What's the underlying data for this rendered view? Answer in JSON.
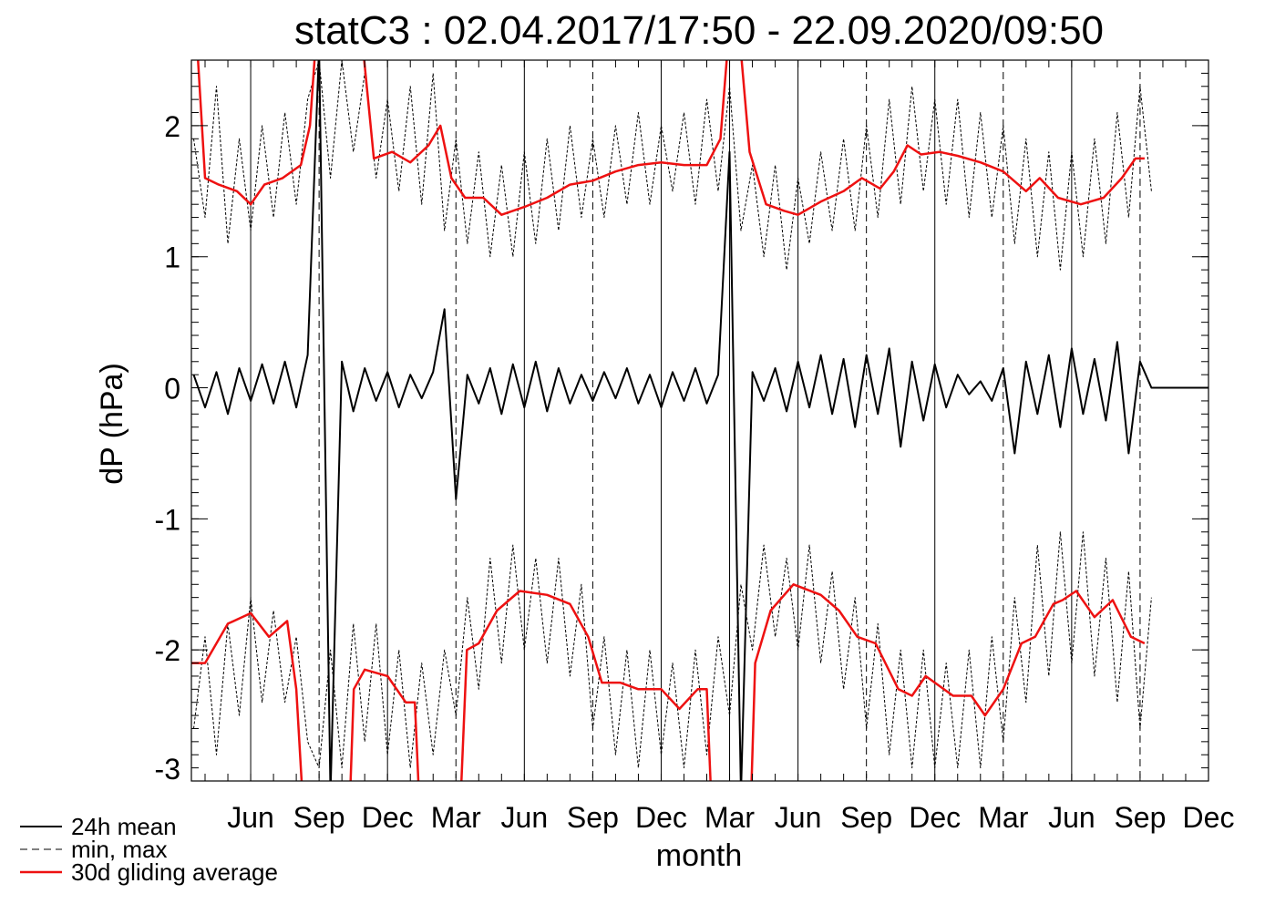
{
  "chart_data": {
    "type": "line",
    "title": "statC3 : 02.04.2017/17:50 - 22.09.2020/09:50",
    "xlabel": "month",
    "ylabel": "dP (hPa)",
    "xlim": [
      2.4,
      47
    ],
    "ylim": [
      -3,
      2.5
    ],
    "xticks": [
      {
        "value": 5,
        "label": "Jun"
      },
      {
        "value": 8,
        "label": "Sep"
      },
      {
        "value": 11,
        "label": "Dec"
      },
      {
        "value": 14,
        "label": "Mar"
      },
      {
        "value": 17,
        "label": "Jun"
      },
      {
        "value": 20,
        "label": "Sep"
      },
      {
        "value": 23,
        "label": "Dec"
      },
      {
        "value": 26,
        "label": "Mar"
      },
      {
        "value": 29,
        "label": "Jun"
      },
      {
        "value": 32,
        "label": "Sep"
      },
      {
        "value": 35,
        "label": "Dec"
      },
      {
        "value": 38,
        "label": "Mar"
      },
      {
        "value": 41,
        "label": "Jun"
      },
      {
        "value": 44,
        "label": "Sep"
      },
      {
        "value": 47,
        "label": "Dec"
      }
    ],
    "grid_dash": [
      false,
      true,
      false,
      true,
      false,
      true,
      false,
      false,
      false,
      true,
      false,
      true,
      false,
      true,
      false
    ],
    "yticks": [
      2,
      1,
      0,
      -1,
      -2,
      -3
    ],
    "x_minor_step": 1,
    "y_minor_step": 0.1,
    "x": [
      2.5,
      3,
      3.5,
      4,
      4.5,
      5,
      5.5,
      6,
      6.5,
      7,
      7.5,
      8,
      8.5,
      9,
      9.5,
      10,
      10.5,
      11,
      11.5,
      12,
      12.5,
      13,
      13.5,
      14,
      14.5,
      15,
      15.5,
      16,
      16.5,
      17,
      17.5,
      18,
      18.5,
      19,
      19.5,
      20,
      20.5,
      21,
      21.5,
      22,
      22.5,
      23,
      23.5,
      24,
      24.5,
      25,
      25.5,
      26,
      26.5,
      27,
      27.5,
      28,
      28.5,
      29,
      29.5,
      30,
      30.5,
      31,
      31.5,
      32,
      32.5,
      33,
      33.5,
      34,
      34.5,
      35,
      35.5,
      36,
      36.5,
      37,
      37.5,
      38,
      38.5,
      39,
      39.5,
      40,
      40.5,
      41,
      41.5,
      42,
      42.5,
      43,
      43.5,
      44,
      44.5,
      45,
      47
    ],
    "series": [
      {
        "name": "24h mean",
        "color": "#000000",
        "dash": false,
        "width": 2,
        "lines": [
          {
            "values": [
              0.1,
              -0.15,
              0.12,
              -0.2,
              0.15,
              -0.1,
              0.18,
              -0.12,
              0.2,
              -0.15,
              0.25,
              2.6,
              -3.1,
              0.2,
              -0.18,
              0.15,
              -0.1,
              0.12,
              -0.15,
              0.1,
              -0.08,
              0.12,
              0.6,
              -0.85,
              0.1,
              -0.12,
              0.15,
              -0.2,
              0.18,
              -0.15,
              0.2,
              -0.18,
              0.15,
              -0.12,
              0.1,
              -0.1,
              0.12,
              -0.08,
              0.15,
              -0.12,
              0.1,
              -0.15,
              0.12,
              -0.1,
              0.15,
              -0.12,
              0.1,
              1.8,
              -3.1,
              0.12,
              -0.1,
              0.15,
              -0.18,
              0.2,
              -0.15,
              0.25,
              -0.2,
              0.22,
              -0.3,
              0.25,
              -0.2,
              0.3,
              -0.45,
              0.2,
              -0.25,
              0.18,
              -0.15,
              0.1,
              -0.05,
              0.05,
              -0.1,
              0.15,
              -0.5,
              0.2,
              -0.2,
              0.25,
              -0.3,
              0.3,
              -0.2,
              0.22,
              -0.25,
              0.35,
              -0.5,
              0.2,
              0,
              0,
              0
            ]
          }
        ]
      },
      {
        "name": "min, max",
        "color": "#000000",
        "dash": true,
        "width": 1,
        "lines": [
          {
            "values": [
              1.9,
              1.3,
              2.3,
              1.1,
              1.9,
              1.2,
              2.0,
              1.3,
              2.1,
              1.4,
              2.2,
              2.5,
              1.6,
              2.5,
              1.8,
              2.4,
              1.6,
              2.2,
              1.5,
              2.3,
              1.4,
              2.4,
              1.2,
              1.9,
              1.1,
              1.8,
              1.0,
              1.7,
              1.0,
              1.8,
              1.1,
              1.9,
              1.2,
              2.0,
              1.3,
              1.9,
              1.3,
              2.0,
              1.4,
              2.1,
              1.4,
              2.0,
              1.5,
              2.1,
              1.4,
              2.2,
              1.5,
              2.3,
              1.2,
              1.7,
              1.0,
              1.7,
              0.9,
              1.6,
              1.1,
              1.8,
              1.2,
              1.9,
              1.2,
              2.0,
              1.3,
              2.2,
              1.4,
              2.3,
              1.5,
              2.2,
              1.4,
              2.2,
              1.3,
              2.1,
              1.3,
              2.0,
              1.1,
              1.9,
              1.0,
              1.8,
              0.9,
              1.8,
              1.0,
              1.9,
              1.1,
              2.1,
              1.3,
              2.3,
              1.5,
              null,
              null
            ]
          },
          {
            "values": [
              -2.6,
              -1.9,
              -2.8,
              -1.8,
              -2.5,
              -1.6,
              -2.4,
              -1.7,
              -2.4,
              -1.9,
              -2.7,
              -2.9,
              -2.0,
              -2.9,
              -1.8,
              -2.7,
              -1.8,
              -2.8,
              -2.0,
              -2.9,
              -2.1,
              -2.8,
              -2.0,
              -2.5,
              -1.6,
              -2.3,
              -1.3,
              -2.1,
              -1.2,
              -2.0,
              -1.3,
              -2.1,
              -1.3,
              -2.2,
              -1.5,
              -2.6,
              -1.9,
              -2.8,
              -2.0,
              -2.9,
              -2.0,
              -2.8,
              -2.1,
              -2.9,
              -2.0,
              -2.8,
              -1.9,
              -2.5,
              -1.5,
              -2.0,
              -1.2,
              -1.9,
              -1.3,
              -2.0,
              -1.2,
              -2.1,
              -1.4,
              -2.3,
              -1.6,
              -2.6,
              -1.8,
              -2.8,
              -2.0,
              -2.9,
              -2.0,
              -2.9,
              -2.1,
              -2.9,
              -2.0,
              -2.9,
              -1.9,
              -2.7,
              -1.6,
              -2.4,
              -1.2,
              -2.2,
              -1.1,
              -2.1,
              -1.1,
              -2.2,
              -1.3,
              -2.4,
              -1.4,
              -2.6,
              -1.6,
              null,
              null
            ]
          }
        ]
      },
      {
        "name": "30d gliding average",
        "color": "#ee1111",
        "dash": false,
        "width": 2.5,
        "lines": [
          {
            "x": [
              2.52,
              3.0,
              3.6,
              4.4,
              5.0,
              5.6,
              6.4,
              7.2,
              7.6,
              7.84,
              8.8,
              9.92,
              10.4,
              11.2,
              12.0,
              12.8,
              13.32,
              13.8,
              14.4,
              15.2,
              16.0,
              17.0,
              18.0,
              19.0,
              20.0,
              21.0,
              22.0,
              23.0,
              24.0,
              25.0,
              25.6,
              25.92,
              26.48,
              26.88,
              27.6,
              28.4,
              29.0,
              30.0,
              31.0,
              31.8,
              32.6,
              33.2,
              33.8,
              34.4,
              35.2,
              36.0,
              37.0,
              38.0,
              39.0,
              39.6,
              40.4,
              41.4,
              42.4,
              43.2,
              43.8,
              44.2
            ],
            "values": [
              3.0,
              1.6,
              1.55,
              1.5,
              1.4,
              1.55,
              1.6,
              1.7,
              2.0,
              2.6,
              4.0,
              2.6,
              1.75,
              1.8,
              1.72,
              1.85,
              2.0,
              1.6,
              1.45,
              1.45,
              1.32,
              1.38,
              1.45,
              1.55,
              1.58,
              1.65,
              1.7,
              1.72,
              1.7,
              1.7,
              1.9,
              2.6,
              2.6,
              1.8,
              1.4,
              1.35,
              1.32,
              1.42,
              1.5,
              1.6,
              1.52,
              1.65,
              1.85,
              1.78,
              1.8,
              1.77,
              1.72,
              1.65,
              1.5,
              1.6,
              1.45,
              1.4,
              1.45,
              1.6,
              1.75,
              1.75
            ]
          },
          {
            "x": [
              2.4,
              3.0,
              4.0,
              5.0,
              5.8,
              6.6,
              7.0,
              7.4,
              8.4,
              9.28,
              9.52,
              10.0,
              11.0,
              11.8,
              12.2,
              12.48,
              13.4,
              14.12,
              14.48,
              15.0,
              15.8,
              16.8,
              18.0,
              19.0,
              19.8,
              20.4,
              21.2,
              22.0,
              23.0,
              23.8,
              24.6,
              25.0,
              25.28,
              26.0,
              26.88,
              27.12,
              27.8,
              28.8,
              30.0,
              30.8,
              31.6,
              32.4,
              33.4,
              34.0,
              34.6,
              35.8,
              36.6,
              37.2,
              38.0,
              38.8,
              39.4,
              40.2,
              40.6,
              41.2,
              42.0,
              42.8,
              43.6,
              44.2
            ],
            "values": [
              -2.1,
              -2.1,
              -1.8,
              -1.72,
              -1.9,
              -1.78,
              -2.3,
              -3.5,
              -4.0,
              -3.5,
              -2.3,
              -2.15,
              -2.2,
              -2.4,
              -2.4,
              -3.5,
              -4.0,
              -3.5,
              -2.0,
              -1.95,
              -1.7,
              -1.55,
              -1.58,
              -1.65,
              -1.9,
              -2.25,
              -2.25,
              -2.3,
              -2.3,
              -2.45,
              -2.3,
              -2.3,
              -3.5,
              -4.0,
              -3.5,
              -2.1,
              -1.7,
              -1.5,
              -1.58,
              -1.7,
              -1.9,
              -1.95,
              -2.3,
              -2.35,
              -2.2,
              -2.35,
              -2.35,
              -2.5,
              -2.3,
              -1.95,
              -1.9,
              -1.65,
              -1.62,
              -1.55,
              -1.75,
              -1.62,
              -1.9,
              -1.95
            ]
          }
        ]
      }
    ]
  }
}
